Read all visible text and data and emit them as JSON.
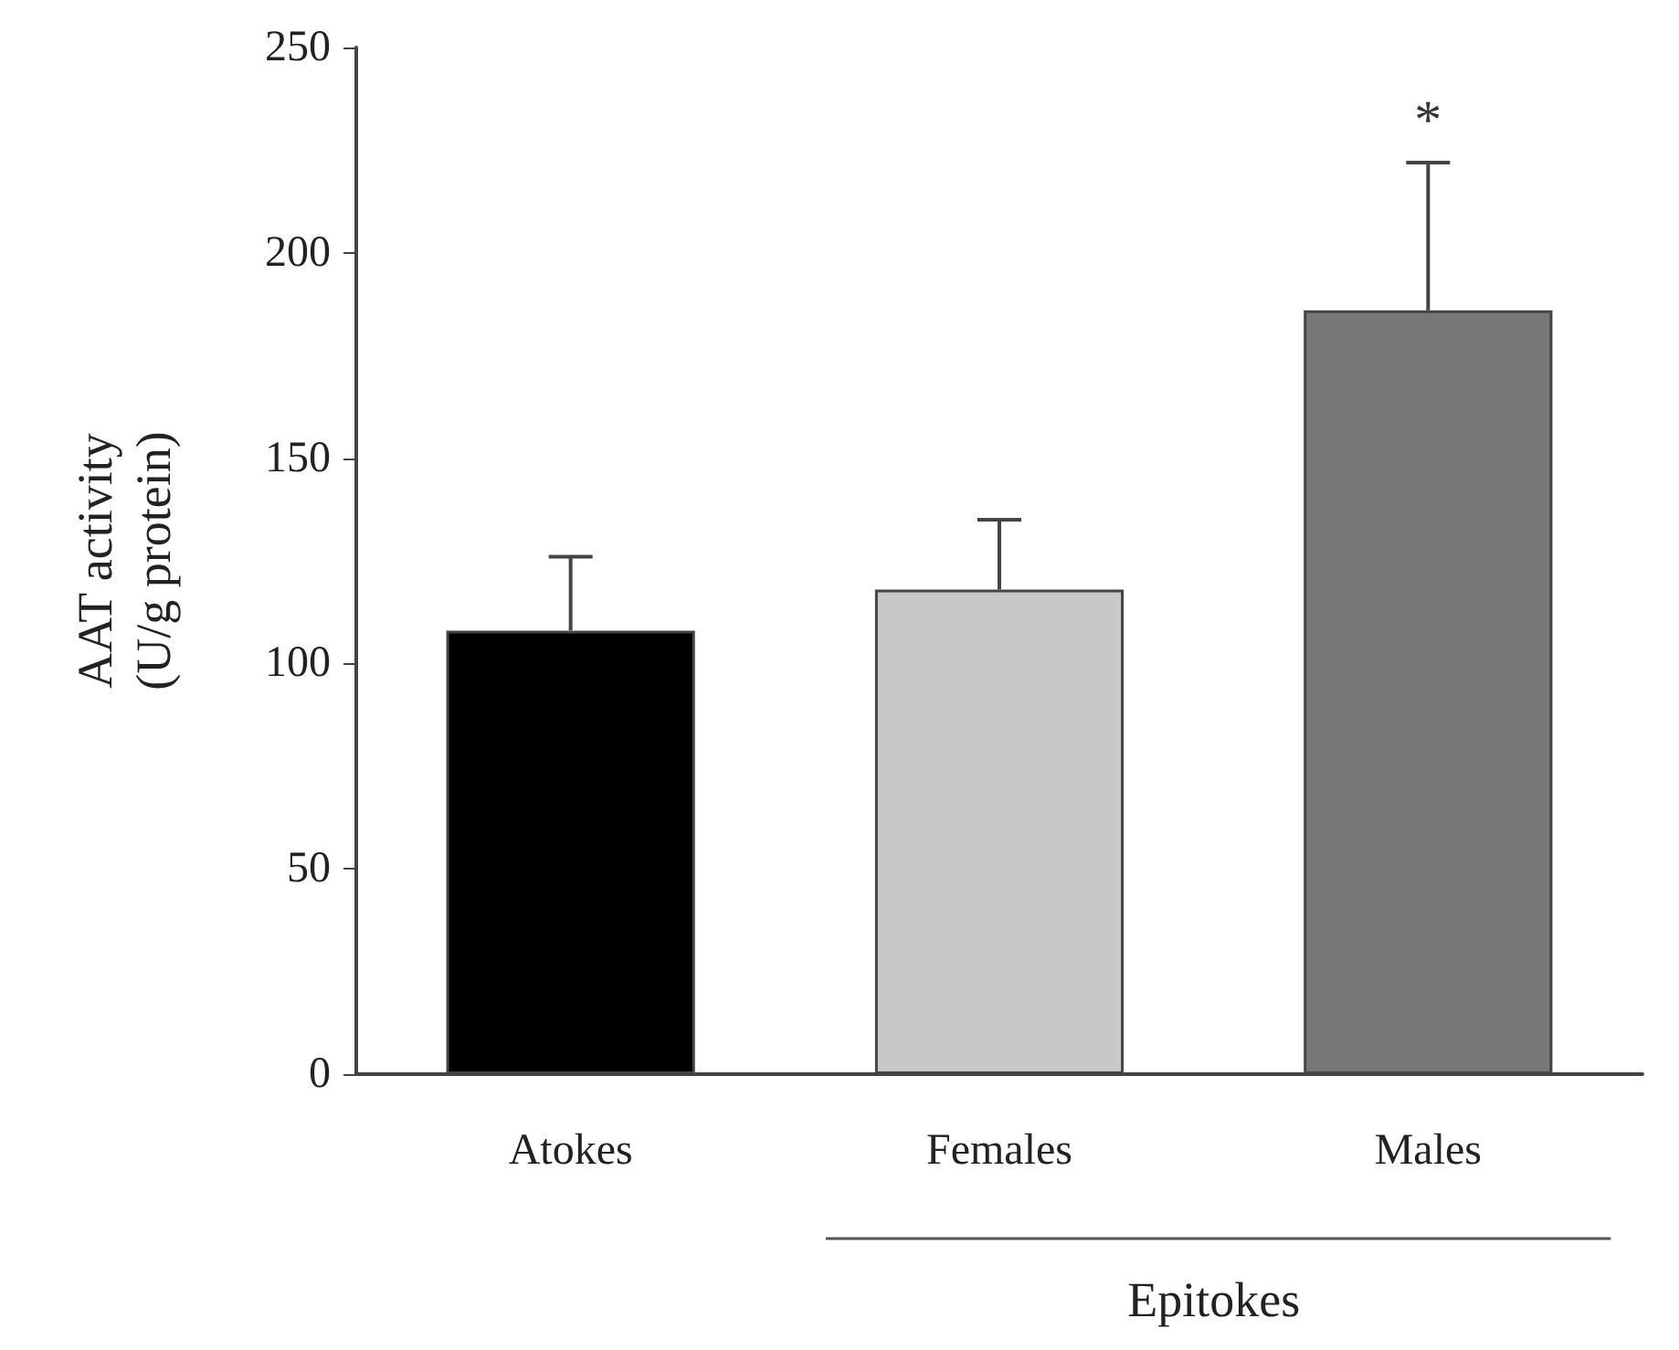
{
  "chart_data": {
    "type": "bar",
    "ylabel": "AAT activity\n(U/g protein)",
    "categories": [
      "Atokes",
      "Females",
      "Males"
    ],
    "values": [
      108,
      118,
      186
    ],
    "colors": [
      "#000000",
      "#c8c8c8",
      "#777777"
    ],
    "errors": [
      [
        108,
        126
      ],
      [
        118,
        135
      ],
      [
        186,
        222
      ]
    ],
    "ylim": [
      0,
      250
    ],
    "yticks": [
      0,
      50,
      100,
      150,
      200,
      250
    ],
    "grid": false,
    "annotations": [
      "*",
      "Epitokes"
    ]
  }
}
